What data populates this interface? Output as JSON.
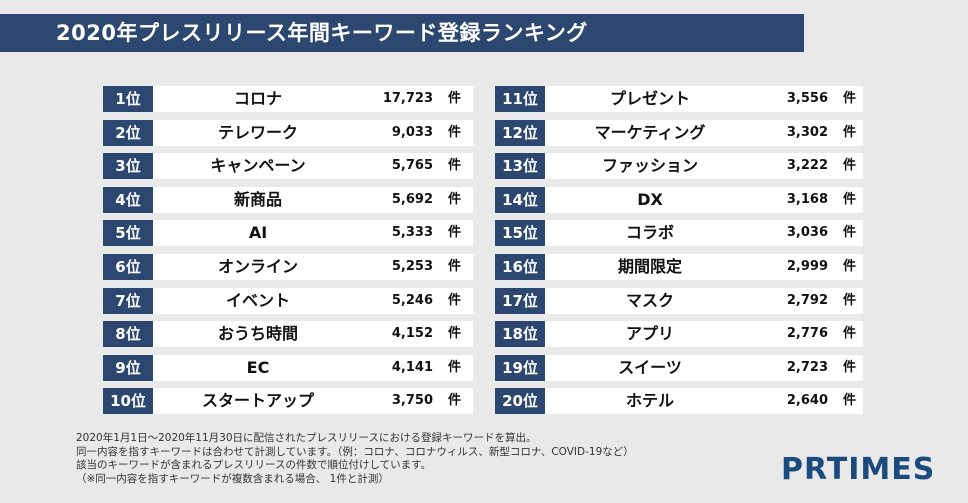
{
  "header": {
    "title": "2020年プレスリリース年間キーワード登録ランキング"
  },
  "chart_data": {
    "type": "table",
    "title": "2020年プレスリリース年間キーワード登録ランキング",
    "unit": "件",
    "rows": [
      {
        "rank": "1位",
        "keyword": "コロナ",
        "count": "17,723"
      },
      {
        "rank": "2位",
        "keyword": "テレワーク",
        "count": "9,033"
      },
      {
        "rank": "3位",
        "keyword": "キャンペーン",
        "count": "5,765"
      },
      {
        "rank": "4位",
        "keyword": "新商品",
        "count": "5,692"
      },
      {
        "rank": "5位",
        "keyword": "AI",
        "count": "5,333"
      },
      {
        "rank": "6位",
        "keyword": "オンライン",
        "count": "5,253"
      },
      {
        "rank": "7位",
        "keyword": "イベント",
        "count": "5,246"
      },
      {
        "rank": "8位",
        "keyword": "おうち時間",
        "count": "4,152"
      },
      {
        "rank": "9位",
        "keyword": "EC",
        "count": "4,141"
      },
      {
        "rank": "10位",
        "keyword": "スタートアップ",
        "count": "3,750"
      },
      {
        "rank": "11位",
        "keyword": "プレゼント",
        "count": "3,556"
      },
      {
        "rank": "12位",
        "keyword": "マーケティング",
        "count": "3,302"
      },
      {
        "rank": "13位",
        "keyword": "ファッション",
        "count": "3,222"
      },
      {
        "rank": "14位",
        "keyword": "DX",
        "count": "3,168"
      },
      {
        "rank": "15位",
        "keyword": "コラボ",
        "count": "3,036"
      },
      {
        "rank": "16位",
        "keyword": "期間限定",
        "count": "2,999"
      },
      {
        "rank": "17位",
        "keyword": "マスク",
        "count": "2,792"
      },
      {
        "rank": "18位",
        "keyword": "アプリ",
        "count": "2,776"
      },
      {
        "rank": "19位",
        "keyword": "スイーツ",
        "count": "2,723"
      },
      {
        "rank": "20位",
        "keyword": "ホテル",
        "count": "2,640"
      }
    ]
  },
  "notes": [
    "2020年1月1日～2020年11月30日に配信されたプレスリリースにおける登録キーワードを算出。",
    "同一内容を指すキーワードは合わせて計測しています。（例：コロナ、コロナウィルス、新型コロナ、COVID-19など）",
    "該当のキーワードが含まれるプレスリリースの件数で順位付けしています。",
    "（※同一内容を指すキーワードが複数含まれる場合、 1件と計測）"
  ],
  "logo": {
    "text": "PRTIMES"
  },
  "colors": {
    "accent": "#2c4770",
    "background": "#e9e9e9",
    "logo": "#1b4a7c"
  }
}
